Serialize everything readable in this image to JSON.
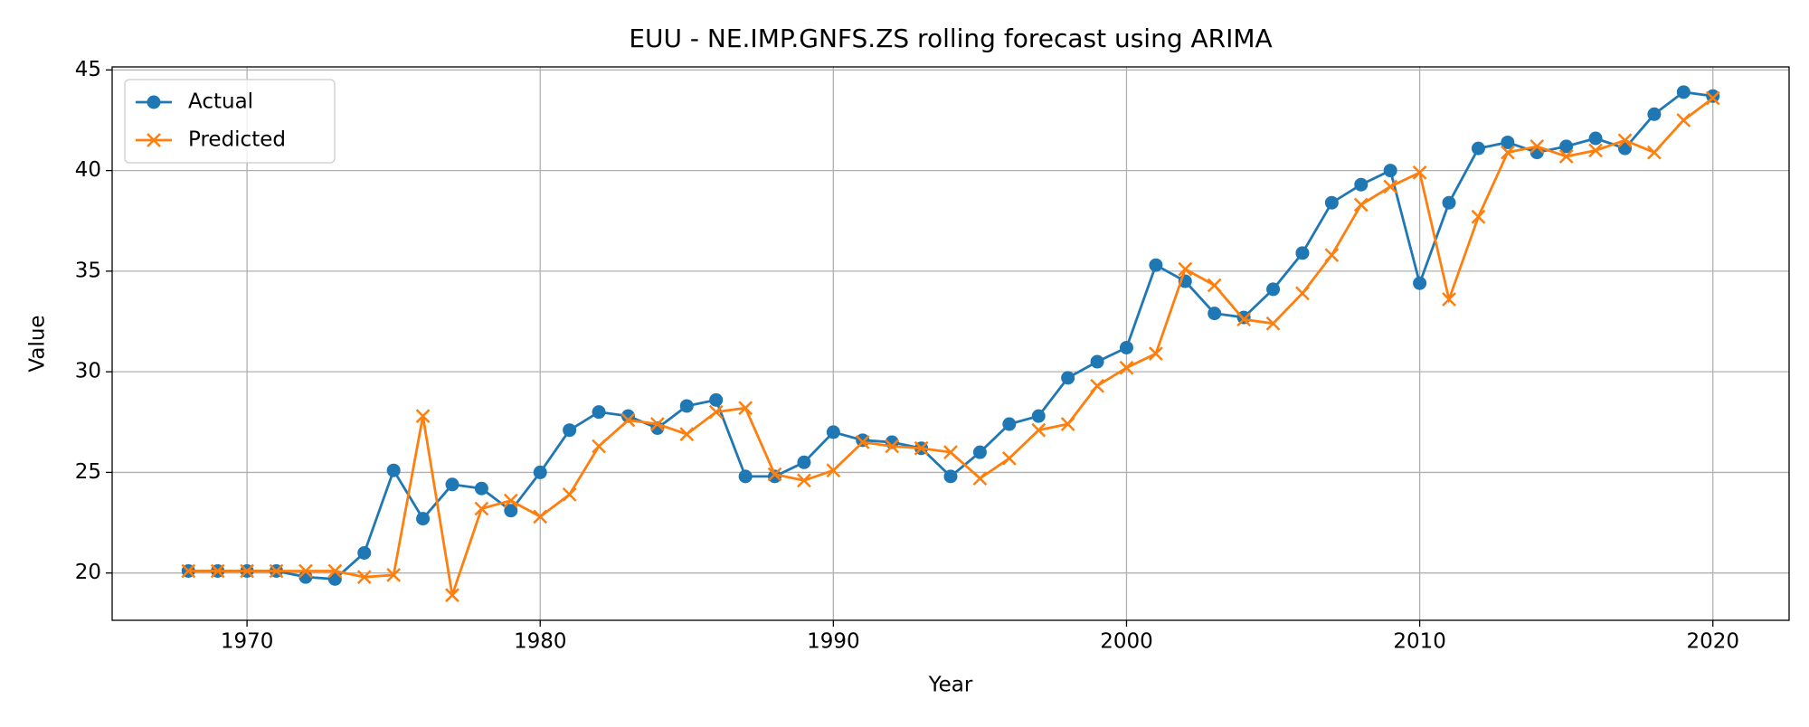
{
  "chart_data": {
    "type": "line",
    "title": "EUU - NE.IMP.GNFS.ZS rolling forecast using ARIMA",
    "x_label": "Year",
    "y_label": "Value",
    "x": [
      1968,
      1969,
      1970,
      1971,
      1972,
      1973,
      1974,
      1975,
      1976,
      1977,
      1978,
      1979,
      1980,
      1981,
      1982,
      1983,
      1984,
      1985,
      1986,
      1987,
      1988,
      1989,
      1990,
      1991,
      1992,
      1993,
      1994,
      1995,
      1996,
      1997,
      1998,
      1999,
      2000,
      2001,
      2002,
      2003,
      2004,
      2005,
      2006,
      2007,
      2008,
      2009,
      2010,
      2011,
      2012,
      2013,
      2014,
      2015,
      2016,
      2017,
      2018,
      2019,
      2020
    ],
    "series": [
      {
        "name": "Actual",
        "color": "#1f77b4",
        "marker": "circle",
        "values": [
          20.1,
          20.1,
          20.1,
          20.1,
          19.8,
          19.7,
          21.0,
          25.1,
          22.7,
          24.4,
          24.2,
          23.1,
          25.0,
          27.1,
          28.0,
          27.8,
          27.2,
          28.3,
          28.6,
          24.8,
          24.8,
          25.5,
          27.0,
          26.6,
          26.5,
          26.2,
          24.8,
          26.0,
          27.4,
          27.8,
          29.7,
          30.5,
          31.2,
          35.3,
          34.5,
          32.9,
          32.7,
          34.1,
          35.9,
          38.4,
          39.3,
          40.0,
          34.4,
          38.4,
          41.1,
          41.4,
          40.9,
          41.2,
          41.6,
          41.1,
          42.8,
          43.9,
          43.7
        ]
      },
      {
        "name": "Predicted",
        "color": "#ff7f0e",
        "marker": "x",
        "values": [
          20.1,
          20.1,
          20.1,
          20.1,
          20.1,
          20.1,
          19.8,
          19.9,
          27.8,
          18.9,
          23.2,
          23.6,
          22.8,
          23.9,
          26.3,
          27.6,
          27.4,
          26.9,
          28.0,
          28.2,
          24.9,
          24.6,
          25.1,
          26.5,
          26.3,
          26.2,
          26.0,
          24.7,
          25.7,
          27.1,
          27.4,
          29.3,
          30.2,
          30.9,
          35.1,
          34.3,
          32.6,
          32.4,
          33.9,
          35.8,
          38.3,
          39.2,
          39.9,
          33.6,
          37.7,
          40.9,
          41.2,
          40.7,
          41.0,
          41.5,
          40.9,
          42.5,
          43.6
        ]
      }
    ],
    "xlim": [
      1965.4,
      2022.6
    ],
    "xticks": [
      1970,
      1980,
      1990,
      2000,
      2010,
      2020
    ],
    "ylim": [
      17.65,
      45.15
    ],
    "yticks": [
      20,
      25,
      30,
      35,
      40,
      45
    ],
    "grid": true,
    "legend": "upper left"
  }
}
